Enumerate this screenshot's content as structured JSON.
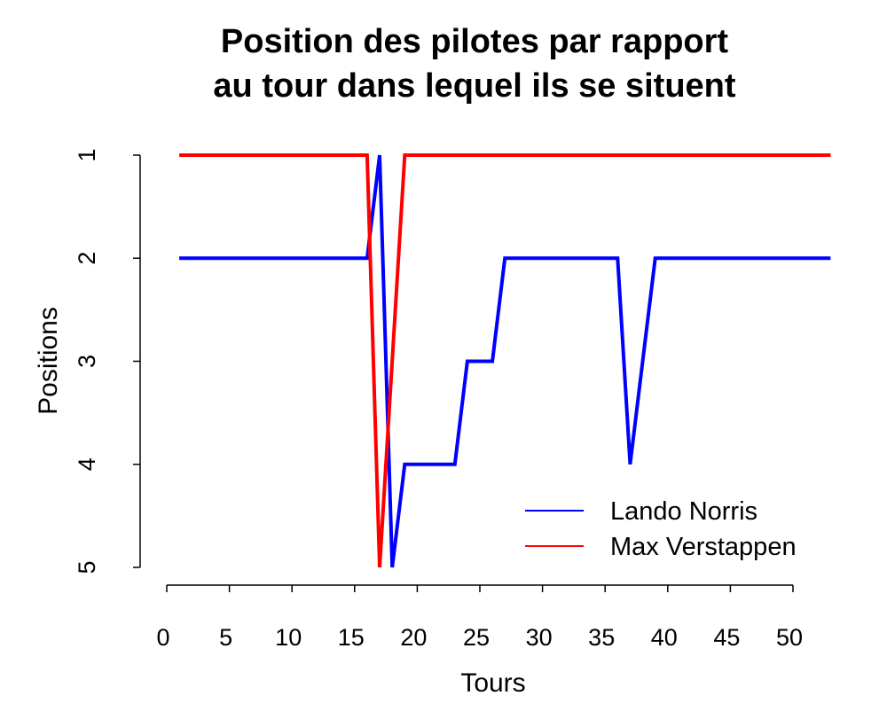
{
  "chart_data": {
    "type": "line",
    "title_lines": [
      "Position des pilotes par rapport",
      "au tour dans lequel ils se situent"
    ],
    "xlabel": "Tours",
    "ylabel": "Positions",
    "xlim": [
      0,
      50
    ],
    "ylim": [
      1,
      5
    ],
    "y_inverted": true,
    "x_ticks": [
      0,
      5,
      10,
      15,
      20,
      25,
      30,
      35,
      40,
      45,
      50
    ],
    "y_ticks": [
      1,
      2,
      3,
      4,
      5
    ],
    "grid": false,
    "legend_position": "bottom-right",
    "series": [
      {
        "name": "Lando Norris",
        "color": "#0000ff",
        "x": [
          1,
          16,
          17,
          18,
          19,
          23,
          24,
          26,
          27,
          36,
          37,
          39,
          53
        ],
        "y": [
          2,
          2,
          1,
          5,
          4,
          4,
          3,
          3,
          2,
          2,
          4,
          2,
          2
        ]
      },
      {
        "name": "Max Verstappen",
        "color": "#ff0000",
        "x": [
          1,
          16,
          17,
          19,
          53
        ],
        "y": [
          1,
          1,
          5,
          1,
          1
        ]
      }
    ]
  }
}
